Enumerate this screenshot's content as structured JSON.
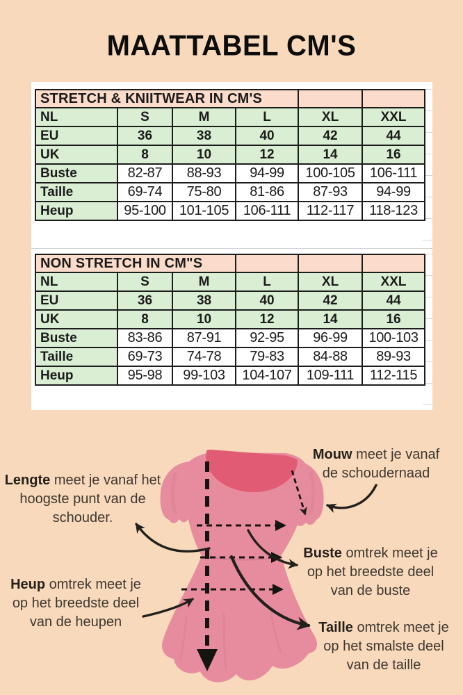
{
  "page_title": "MAATTABEL CM'S",
  "tables": [
    {
      "header": "STRETCH & KNIITWEAR IN CM'S",
      "header_span": 4,
      "rows": [
        {
          "label": "NL",
          "type": "size",
          "values": [
            "S",
            "M",
            "L",
            "XL",
            "XXL"
          ]
        },
        {
          "label": "EU",
          "type": "size",
          "values": [
            "36",
            "38",
            "40",
            "42",
            "44"
          ]
        },
        {
          "label": "UK",
          "type": "size",
          "values": [
            "8",
            "10",
            "12",
            "14",
            "16"
          ]
        },
        {
          "label": "Buste",
          "type": "measure",
          "values": [
            "82-87",
            "88-93",
            "94-99",
            "100-105",
            "106-111"
          ]
        },
        {
          "label": "Taille",
          "type": "measure",
          "values": [
            "69-74",
            "75-80",
            "81-86",
            "87-93",
            "94-99"
          ]
        },
        {
          "label": "Heup",
          "type": "measure",
          "values": [
            "95-100",
            "101-105",
            "106-111",
            "112-117",
            "118-123"
          ]
        }
      ]
    },
    {
      "header": "NON STRETCH IN CM\"S",
      "header_span": 3,
      "rows": [
        {
          "label": "NL",
          "type": "size",
          "values": [
            "S",
            "M",
            "L",
            "XL",
            "XXL"
          ]
        },
        {
          "label": "EU",
          "type": "size",
          "values": [
            "36",
            "38",
            "40",
            "42",
            "44"
          ]
        },
        {
          "label": "UK",
          "type": "size",
          "values": [
            "8",
            "10",
            "12",
            "14",
            "16"
          ]
        },
        {
          "label": "Buste",
          "type": "measure",
          "values": [
            "83-86",
            "87-91",
            "92-95",
            "96-99",
            "100-103"
          ]
        },
        {
          "label": "Taille",
          "type": "measure",
          "values": [
            "69-73",
            "74-78",
            "79-83",
            "84-88",
            "89-93"
          ]
        },
        {
          "label": "Heup",
          "type": "measure",
          "values": [
            "95-98",
            "99-103",
            "104-107",
            "109-111",
            "112-115"
          ]
        }
      ]
    }
  ],
  "diagram": {
    "annotations": [
      {
        "id": "lengte",
        "term": "Lengte",
        "line1": "meet je vanaf het",
        "line2": "hoogste punt van de",
        "line3": "schouder."
      },
      {
        "id": "mouw",
        "term": "Mouw",
        "line1": "meet je vanaf",
        "line2": "de schoudernaad",
        "line3": ""
      },
      {
        "id": "buste",
        "term": "Buste",
        "line1": "omtrek meet je",
        "line2": "op het breedste deel",
        "line3": "van de buste"
      },
      {
        "id": "taille",
        "term": "Taille",
        "line1": "omtrek meet je",
        "line2": "op het smalste deel",
        "line3": "van de taille"
      },
      {
        "id": "heup",
        "term": "Heup",
        "line1": "omtrek meet je",
        "line2": "op het breedste deel",
        "line3": "van de heupen"
      }
    ]
  },
  "colors": {
    "background": "#f8d9bb",
    "table_header_pink": "#fbdcca",
    "table_green": "#d9eed3",
    "table_border": "#1c1c1c",
    "dress_pink": "#e78c9e",
    "dress_neckline": "#e25b74",
    "dress_shade": "#d87e93",
    "text": "#1b1b1b",
    "diagram_text": "#3d3731",
    "arrow": "#22201c"
  }
}
